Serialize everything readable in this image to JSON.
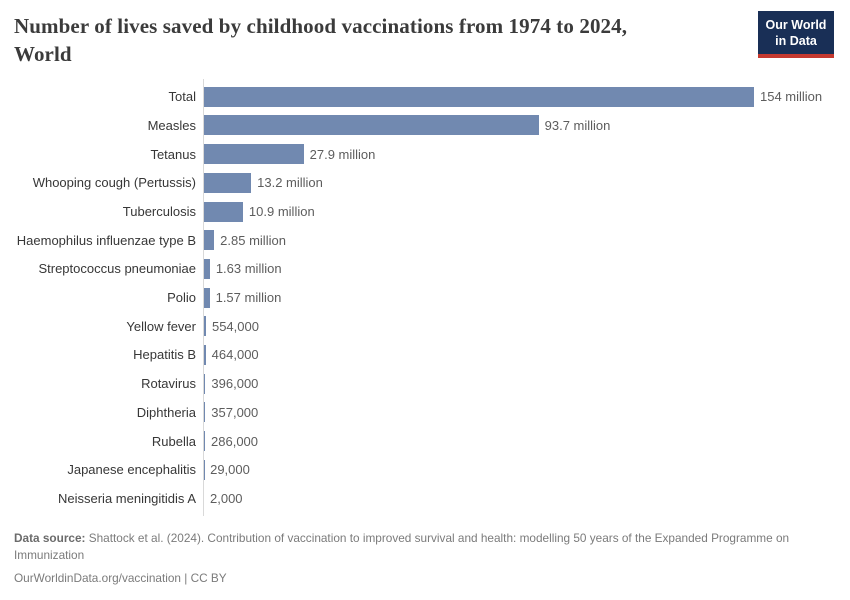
{
  "header": {
    "title": "Number of lives saved by childhood vaccinations from 1974 to 2024, World",
    "logo": {
      "line1": "Our World",
      "line2": "in Data",
      "bg_color": "#192f56",
      "accent_color": "#c5392f"
    }
  },
  "chart_data": {
    "type": "bar",
    "orientation": "horizontal",
    "title": "Number of lives saved by childhood vaccinations from 1974 to 2024, World",
    "unit": "lives saved",
    "xlim_millions": [
      0,
      154
    ],
    "grid": false,
    "legend": "none",
    "bar_color": "#7189b0",
    "axis_color": "#d9d9d9",
    "categories": [
      "Total",
      "Measles",
      "Tetanus",
      "Whooping cough (Pertussis)",
      "Tuberculosis",
      "Haemophilus influenzae type B",
      "Streptococcus pneumoniae",
      "Polio",
      "Yellow fever",
      "Hepatitis B",
      "Rotavirus",
      "Diphtheria",
      "Rubella",
      "Japanese encephalitis",
      "Neisseria meningitidis A"
    ],
    "values_millions": [
      154,
      93.7,
      27.9,
      13.2,
      10.9,
      2.85,
      1.63,
      1.57,
      0.554,
      0.464,
      0.396,
      0.357,
      0.286,
      0.029,
      0.002
    ],
    "value_labels": [
      "154 million",
      "93.7 million",
      "27.9 million",
      "13.2 million",
      "10.9 million",
      "2.85 million",
      "1.63 million",
      "1.57 million",
      "554,000",
      "464,000",
      "396,000",
      "357,000",
      "286,000",
      "29,000",
      "2,000"
    ]
  },
  "footer": {
    "source_label": "Data source:",
    "source_text": " Shattock et al. (2024). Contribution of vaccination to improved survival and health: modelling 50 years of the Expanded Programme on Immunization",
    "license_line": "OurWorldinData.org/vaccination | CC BY"
  }
}
